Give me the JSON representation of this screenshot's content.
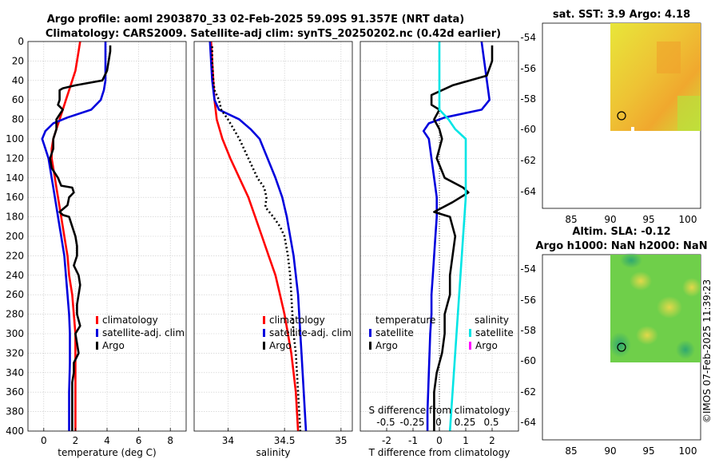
{
  "figure": {
    "title_line1": "Argo profile: aoml 2903870_33 02-Feb-2025 59.09S 91.357E (NRT data)",
    "title_line2": "Climatology: CARS2009. Satellite-adj clim: synTS_20250202.nc (0.42d earlier)",
    "credit": "©IMOS 07-Feb-2025 11:39:23"
  },
  "colors": {
    "climatology": "#ff0000",
    "satellite": "#0000dd",
    "argo": "#000000",
    "sat_salinity": "#00e5e5",
    "argo_salinity": "#ff00ff",
    "zero_line": "#000000"
  },
  "chart_data": [
    {
      "id": "temperature",
      "type": "line",
      "xlabel": "temperature (deg C)",
      "xlim": [
        -1,
        9
      ],
      "xticks": [
        0,
        2,
        4,
        6,
        8
      ],
      "ylim": [
        0,
        400
      ],
      "yticks": [
        0,
        20,
        40,
        60,
        80,
        100,
        120,
        140,
        160,
        180,
        200,
        220,
        240,
        260,
        280,
        300,
        320,
        340,
        360,
        380,
        400
      ],
      "grid": true,
      "legend": [
        "climatology",
        "satellite-adj. clim",
        "Argo"
      ],
      "legend_position": "bottom-right",
      "series": [
        {
          "name": "climatology",
          "color": "climatology",
          "points": [
            [
              2.3,
              0
            ],
            [
              2.2,
              10
            ],
            [
              2.1,
              20
            ],
            [
              2.0,
              30
            ],
            [
              1.8,
              40
            ],
            [
              1.6,
              50
            ],
            [
              1.4,
              60
            ],
            [
              1.2,
              70
            ],
            [
              1.0,
              80
            ],
            [
              0.8,
              90
            ],
            [
              0.6,
              100
            ],
            [
              0.5,
              110
            ],
            [
              0.5,
              120
            ],
            [
              0.6,
              130
            ],
            [
              0.7,
              140
            ],
            [
              0.8,
              150
            ],
            [
              0.9,
              160
            ],
            [
              1.0,
              170
            ],
            [
              1.1,
              180
            ],
            [
              1.3,
              200
            ],
            [
              1.5,
              220
            ],
            [
              1.6,
              240
            ],
            [
              1.8,
              260
            ],
            [
              1.9,
              280
            ],
            [
              2.0,
              300
            ],
            [
              2.0,
              320
            ],
            [
              2.0,
              340
            ],
            [
              2.0,
              360
            ],
            [
              2.0,
              380
            ],
            [
              2.0,
              400
            ]
          ]
        },
        {
          "name": "satellite-adj. clim",
          "color": "satellite",
          "points": [
            [
              3.9,
              0
            ],
            [
              3.9,
              20
            ],
            [
              3.9,
              40
            ],
            [
              3.8,
              50
            ],
            [
              3.6,
              60
            ],
            [
              3.0,
              70
            ],
            [
              1.5,
              78
            ],
            [
              0.6,
              84
            ],
            [
              0.1,
              92
            ],
            [
              -0.1,
              100
            ],
            [
              0.1,
              110
            ],
            [
              0.3,
              120
            ],
            [
              0.5,
              140
            ],
            [
              0.7,
              160
            ],
            [
              0.9,
              180
            ],
            [
              1.1,
              200
            ],
            [
              1.3,
              220
            ],
            [
              1.4,
              240
            ],
            [
              1.5,
              260
            ],
            [
              1.6,
              280
            ],
            [
              1.65,
              300
            ],
            [
              1.65,
              330
            ],
            [
              1.6,
              360
            ],
            [
              1.6,
              400
            ]
          ]
        },
        {
          "name": "Argo",
          "color": "argo",
          "points": [
            [
              4.2,
              4
            ],
            [
              4.2,
              10
            ],
            [
              4.1,
              20
            ],
            [
              4.0,
              30
            ],
            [
              3.7,
              40
            ],
            [
              2.0,
              45
            ],
            [
              1.2,
              48
            ],
            [
              1.0,
              50
            ],
            [
              1.0,
              60
            ],
            [
              0.9,
              65
            ],
            [
              1.2,
              70
            ],
            [
              0.8,
              80
            ],
            [
              0.8,
              90
            ],
            [
              0.6,
              100
            ],
            [
              0.6,
              110
            ],
            [
              0.4,
              120
            ],
            [
              0.5,
              130
            ],
            [
              0.9,
              140
            ],
            [
              1.1,
              148
            ],
            [
              1.8,
              150
            ],
            [
              1.9,
              155
            ],
            [
              1.6,
              160
            ],
            [
              1.5,
              168
            ],
            [
              1.0,
              175
            ],
            [
              1.2,
              178
            ],
            [
              1.6,
              180
            ],
            [
              1.8,
              190
            ],
            [
              2.0,
              200
            ],
            [
              2.1,
              210
            ],
            [
              2.1,
              220
            ],
            [
              1.9,
              230
            ],
            [
              2.2,
              240
            ],
            [
              2.3,
              250
            ],
            [
              2.2,
              260
            ],
            [
              2.1,
              270
            ],
            [
              2.1,
              280
            ],
            [
              2.3,
              292
            ],
            [
              2.0,
              300
            ],
            [
              2.1,
              310
            ],
            [
              2.2,
              320
            ],
            [
              1.9,
              330
            ],
            [
              1.9,
              340
            ],
            [
              1.8,
              350
            ],
            [
              1.8,
              370
            ],
            [
              1.8,
              390
            ],
            [
              1.8,
              400
            ]
          ]
        }
      ]
    },
    {
      "id": "salinity",
      "type": "line",
      "xlabel": "salinity",
      "xlim": [
        33.7,
        35.1
      ],
      "xticks": [
        34,
        34.5,
        35
      ],
      "ylim": [
        0,
        400
      ],
      "grid": true,
      "legend": [
        "climatology",
        "satellite-adj. clim",
        "Argo"
      ],
      "legend_position": "bottom-right",
      "series": [
        {
          "name": "climatology",
          "color": "climatology",
          "points": [
            [
              33.85,
              0
            ],
            [
              33.86,
              20
            ],
            [
              33.87,
              40
            ],
            [
              33.88,
              60
            ],
            [
              33.9,
              80
            ],
            [
              33.95,
              100
            ],
            [
              34.02,
              120
            ],
            [
              34.1,
              140
            ],
            [
              34.18,
              160
            ],
            [
              34.24,
              180
            ],
            [
              34.3,
              200
            ],
            [
              34.36,
              220
            ],
            [
              34.42,
              240
            ],
            [
              34.46,
              260
            ],
            [
              34.5,
              280
            ],
            [
              34.53,
              300
            ],
            [
              34.56,
              320
            ],
            [
              34.58,
              340
            ],
            [
              34.6,
              360
            ],
            [
              34.61,
              380
            ],
            [
              34.62,
              400
            ]
          ]
        },
        {
          "name": "satellite-adj. clim",
          "color": "satellite",
          "points": [
            [
              33.84,
              0
            ],
            [
              33.85,
              20
            ],
            [
              33.86,
              40
            ],
            [
              33.88,
              60
            ],
            [
              33.92,
              70
            ],
            [
              34.1,
              80
            ],
            [
              34.2,
              90
            ],
            [
              34.28,
              100
            ],
            [
              34.35,
              120
            ],
            [
              34.42,
              140
            ],
            [
              34.48,
              160
            ],
            [
              34.52,
              180
            ],
            [
              34.55,
              200
            ],
            [
              34.58,
              220
            ],
            [
              34.6,
              240
            ],
            [
              34.62,
              260
            ],
            [
              34.63,
              280
            ],
            [
              34.64,
              300
            ],
            [
              34.65,
              320
            ],
            [
              34.66,
              340
            ],
            [
              34.67,
              360
            ],
            [
              34.68,
              380
            ],
            [
              34.69,
              400
            ]
          ]
        },
        {
          "name": "Argo",
          "color": "argo",
          "dashed": true,
          "points": [
            [
              33.86,
              5
            ],
            [
              33.86,
              20
            ],
            [
              33.87,
              40
            ],
            [
              33.88,
              50
            ],
            [
              33.92,
              60
            ],
            [
              33.94,
              70
            ],
            [
              34.0,
              80
            ],
            [
              34.05,
              90
            ],
            [
              34.1,
              100
            ],
            [
              34.18,
              120
            ],
            [
              34.26,
              140
            ],
            [
              34.32,
              150
            ],
            [
              34.34,
              160
            ],
            [
              34.33,
              170
            ],
            [
              34.4,
              180
            ],
            [
              34.46,
              190
            ],
            [
              34.5,
              200
            ],
            [
              34.53,
              220
            ],
            [
              34.55,
              240
            ],
            [
              34.56,
              260
            ],
            [
              34.57,
              280
            ],
            [
              34.58,
              300
            ],
            [
              34.6,
              320
            ],
            [
              34.61,
              340
            ],
            [
              34.62,
              360
            ],
            [
              34.63,
              380
            ],
            [
              34.64,
              400
            ]
          ]
        }
      ]
    },
    {
      "id": "difference",
      "type": "line",
      "xlabel": "T difference from climatology",
      "xlim": [
        -3,
        3
      ],
      "xticks": [
        -2,
        -1,
        0,
        1,
        2
      ],
      "xlabel_secondary": "S difference from climatology",
      "secondary_xticks": [
        "-0.5",
        "-0.25",
        "0",
        "0.25",
        "0.5"
      ],
      "ylim": [
        0,
        400
      ],
      "grid": true,
      "legend_headers": [
        "temperature",
        "salinity"
      ],
      "legend": [
        "satellite",
        "Argo",
        "satellite",
        "Argo"
      ],
      "series": [
        {
          "name": "T satellite",
          "color": "satellite",
          "points": [
            [
              1.6,
              0
            ],
            [
              1.7,
              20
            ],
            [
              1.8,
              40
            ],
            [
              1.9,
              60
            ],
            [
              1.6,
              70
            ],
            [
              0.2,
              78
            ],
            [
              -0.4,
              84
            ],
            [
              -0.6,
              92
            ],
            [
              -0.4,
              100
            ],
            [
              -0.3,
              120
            ],
            [
              -0.2,
              140
            ],
            [
              -0.1,
              160
            ],
            [
              -0.1,
              180
            ],
            [
              -0.15,
              200
            ],
            [
              -0.2,
              220
            ],
            [
              -0.25,
              240
            ],
            [
              -0.3,
              260
            ],
            [
              -0.3,
              280
            ],
            [
              -0.35,
              300
            ],
            [
              -0.4,
              340
            ],
            [
              -0.45,
              380
            ],
            [
              -0.45,
              400
            ]
          ]
        },
        {
          "name": "T Argo",
          "color": "argo",
          "points": [
            [
              2.0,
              4
            ],
            [
              2.0,
              20
            ],
            [
              1.8,
              35
            ],
            [
              0.5,
              45
            ],
            [
              -0.3,
              55
            ],
            [
              -0.3,
              65
            ],
            [
              0.0,
              70
            ],
            [
              -0.2,
              80
            ],
            [
              0.0,
              90
            ],
            [
              0.1,
              100
            ],
            [
              -0.1,
              120
            ],
            [
              0.2,
              140
            ],
            [
              0.9,
              150
            ],
            [
              1.1,
              155
            ],
            [
              0.5,
              165
            ],
            [
              -0.2,
              175
            ],
            [
              0.4,
              180
            ],
            [
              0.5,
              190
            ],
            [
              0.6,
              200
            ],
            [
              0.5,
              220
            ],
            [
              0.4,
              240
            ],
            [
              0.4,
              260
            ],
            [
              0.2,
              280
            ],
            [
              0.2,
              300
            ],
            [
              0.1,
              320
            ],
            [
              -0.1,
              340
            ],
            [
              -0.2,
              360
            ],
            [
              -0.2,
              380
            ],
            [
              -0.2,
              400
            ]
          ]
        },
        {
          "name": "S satellite",
          "color": "sat_salinity",
          "points": [
            [
              0.0,
              0
            ],
            [
              0.0,
              20
            ],
            [
              0.0,
              40
            ],
            [
              0.0,
              60
            ],
            [
              0.0,
              70
            ],
            [
              0.35,
              80
            ],
            [
              0.6,
              90
            ],
            [
              1.0,
              100
            ],
            [
              1.0,
              140
            ],
            [
              1.0,
              160
            ],
            [
              0.9,
              200
            ],
            [
              0.8,
              240
            ],
            [
              0.7,
              280
            ],
            [
              0.6,
              320
            ],
            [
              0.5,
              360
            ],
            [
              0.4,
              400
            ]
          ]
        }
      ]
    }
  ],
  "maps": [
    {
      "id": "sst",
      "title": "sat. SST: 3.9 Argo: 4.18",
      "xticks": [
        "85",
        "90",
        "95",
        "100"
      ],
      "yticks": [
        "-54",
        "-56",
        "-58",
        "-60",
        "-62",
        "-64"
      ],
      "profile_marker": {
        "lon": 91.357,
        "lat": -59.09
      }
    },
    {
      "id": "sla",
      "title_line1": "Altim. SLA: -0.12",
      "title_line2": "Argo h1000: NaN h2000: NaN",
      "xticks": [
        "85",
        "90",
        "95",
        "100"
      ],
      "yticks": [
        "-54",
        "-56",
        "-58",
        "-60",
        "-62",
        "-64"
      ],
      "profile_marker": {
        "lon": 91.357,
        "lat": -59.09
      }
    }
  ]
}
